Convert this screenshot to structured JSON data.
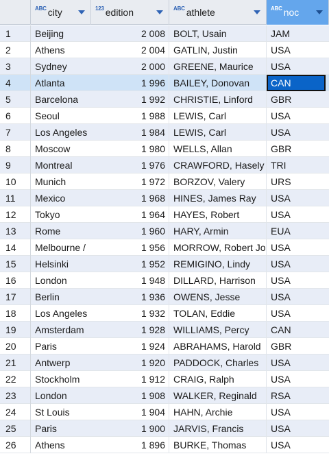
{
  "columns": [
    {
      "type_icon": "ABC",
      "label": "city"
    },
    {
      "type_icon": "123",
      "label": "edition"
    },
    {
      "type_icon": "ABC",
      "label": "athlete"
    },
    {
      "type_icon": "ABC",
      "label": "noc"
    }
  ],
  "selected_row": 4,
  "colors": {
    "header_active": "#64a6ec",
    "selected_cell": "#0a64c8",
    "zebra": "#e8edf7"
  },
  "rows": [
    {
      "num": "1",
      "city": "Beijing",
      "edition": "2 008",
      "athlete": "BOLT, Usain",
      "noc": "JAM"
    },
    {
      "num": "2",
      "city": "Athens",
      "edition": "2 004",
      "athlete": "GATLIN, Justin",
      "noc": "USA"
    },
    {
      "num": "3",
      "city": "Sydney",
      "edition": "2 000",
      "athlete": "GREENE, Maurice",
      "noc": "USA"
    },
    {
      "num": "4",
      "city": "Atlanta",
      "edition": "1 996",
      "athlete": "BAILEY, Donovan",
      "noc": "CAN"
    },
    {
      "num": "5",
      "city": "Barcelona",
      "edition": "1 992",
      "athlete": "CHRISTIE, Linford",
      "noc": "GBR"
    },
    {
      "num": "6",
      "city": "Seoul",
      "edition": "1 988",
      "athlete": "LEWIS, Carl",
      "noc": "USA"
    },
    {
      "num": "7",
      "city": "Los Angeles",
      "edition": "1 984",
      "athlete": "LEWIS, Carl",
      "noc": "USA"
    },
    {
      "num": "8",
      "city": "Moscow",
      "edition": "1 980",
      "athlete": "WELLS, Allan",
      "noc": "GBR"
    },
    {
      "num": "9",
      "city": "Montreal",
      "edition": "1 976",
      "athlete": "CRAWFORD, Hasely",
      "noc": "TRI"
    },
    {
      "num": "10",
      "city": "Munich",
      "edition": "1 972",
      "athlete": "BORZOV, Valery",
      "noc": "URS"
    },
    {
      "num": "11",
      "city": "Mexico",
      "edition": "1 968",
      "athlete": "HINES, James Ray",
      "noc": "USA"
    },
    {
      "num": "12",
      "city": "Tokyo",
      "edition": "1 964",
      "athlete": "HAYES, Robert",
      "noc": "USA"
    },
    {
      "num": "13",
      "city": "Rome",
      "edition": "1 960",
      "athlete": "HARY, Armin",
      "noc": "EUA"
    },
    {
      "num": "14",
      "city": "Melbourne /",
      "edition": "1 956",
      "athlete": "MORROW, Robert Jo",
      "noc": "USA"
    },
    {
      "num": "15",
      "city": "Helsinki",
      "edition": "1 952",
      "athlete": "REMIGINO, Lindy",
      "noc": "USA"
    },
    {
      "num": "16",
      "city": "London",
      "edition": "1 948",
      "athlete": "DILLARD, Harrison",
      "noc": "USA"
    },
    {
      "num": "17",
      "city": "Berlin",
      "edition": "1 936",
      "athlete": "OWENS, Jesse",
      "noc": "USA"
    },
    {
      "num": "18",
      "city": "Los Angeles",
      "edition": "1 932",
      "athlete": "TOLAN, Eddie",
      "noc": "USA"
    },
    {
      "num": "19",
      "city": "Amsterdam",
      "edition": "1 928",
      "athlete": "WILLIAMS, Percy",
      "noc": "CAN"
    },
    {
      "num": "20",
      "city": "Paris",
      "edition": "1 924",
      "athlete": "ABRAHAMS, Harold",
      "noc": "GBR"
    },
    {
      "num": "21",
      "city": "Antwerp",
      "edition": "1 920",
      "athlete": "PADDOCK, Charles",
      "noc": "USA"
    },
    {
      "num": "22",
      "city": "Stockholm",
      "edition": "1 912",
      "athlete": "CRAIG, Ralph",
      "noc": "USA"
    },
    {
      "num": "23",
      "city": "London",
      "edition": "1 908",
      "athlete": "WALKER, Reginald",
      "noc": "RSA"
    },
    {
      "num": "24",
      "city": "St Louis",
      "edition": "1 904",
      "athlete": "HAHN, Archie",
      "noc": "USA"
    },
    {
      "num": "25",
      "city": "Paris",
      "edition": "1 900",
      "athlete": "JARVIS, Francis",
      "noc": "USA"
    },
    {
      "num": "26",
      "city": "Athens",
      "edition": "1 896",
      "athlete": "BURKE, Thomas",
      "noc": "USA"
    }
  ]
}
